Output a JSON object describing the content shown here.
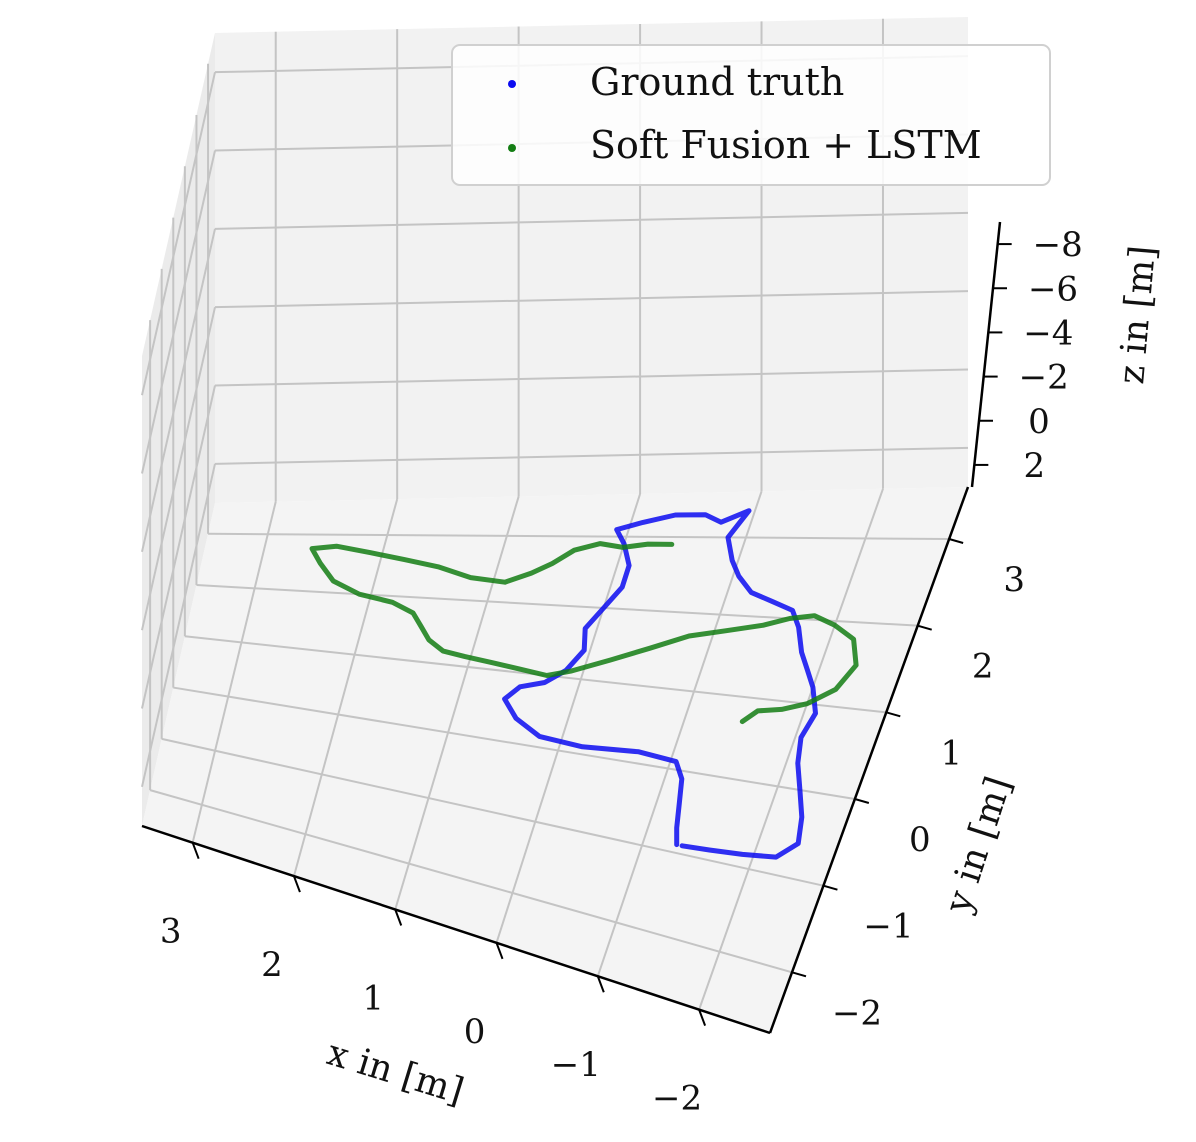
{
  "chart_data": {
    "type": "line3d",
    "title": "",
    "xlabel": "x in [m]",
    "ylabel": "y in [m]",
    "zlabel": "z in [m]",
    "x_ticks": [
      "3",
      "2",
      "1",
      "0",
      "−1",
      "−2"
    ],
    "y_ticks": [
      "−2",
      "−1",
      "0",
      "1",
      "2",
      "3"
    ],
    "z_ticks": [
      "−8",
      "−6",
      "−4",
      "−2",
      "0",
      "2"
    ],
    "xlim": [
      3.5,
      -2.7
    ],
    "ylim": [
      -2.7,
      3.6
    ],
    "zlim": [
      3,
      -9
    ],
    "grid": true,
    "legend_position": "top-right",
    "series": [
      {
        "name": "Ground truth",
        "color": "#0b0bf0",
        "path": [
          [
            -1.3,
            -0.9
          ],
          [
            -1.25,
            -0.7
          ],
          [
            -1.2,
            -0.4
          ],
          [
            -1.15,
            -0.1
          ],
          [
            -1.05,
            0.1
          ],
          [
            -0.7,
            0.15
          ],
          [
            -0.2,
            0.1
          ],
          [
            0.2,
            0.15
          ],
          [
            0.45,
            0.35
          ],
          [
            0.6,
            0.6
          ],
          [
            0.5,
            0.8
          ],
          [
            0.3,
            0.9
          ],
          [
            0.15,
            1.1
          ],
          [
            0.05,
            1.4
          ],
          [
            0.1,
            1.7
          ],
          [
            0.0,
            2.0
          ],
          [
            -0.1,
            2.3
          ],
          [
            -0.1,
            2.6
          ],
          [
            0.0,
            2.9
          ],
          [
            0.1,
            3.1
          ],
          [
            -0.1,
            3.2
          ],
          [
            -0.35,
            3.3
          ],
          [
            -0.6,
            3.3
          ],
          [
            -0.75,
            3.2
          ],
          [
            -0.95,
            3.35
          ],
          [
            -0.85,
            3.0
          ],
          [
            -0.95,
            2.7
          ],
          [
            -1.05,
            2.5
          ],
          [
            -1.2,
            2.3
          ],
          [
            -1.4,
            2.2
          ],
          [
            -1.6,
            2.1
          ],
          [
            -1.7,
            1.9
          ],
          [
            -1.8,
            1.6
          ],
          [
            -1.9,
            1.4
          ],
          [
            -2.0,
            1.2
          ],
          [
            -2.1,
            0.9
          ],
          [
            -2.05,
            0.6
          ],
          [
            -2.1,
            0.3
          ],
          [
            -2.2,
            0.0
          ],
          [
            -2.3,
            -0.3
          ],
          [
            -2.35,
            -0.6
          ],
          [
            -2.2,
            -0.8
          ],
          [
            -1.9,
            -0.85
          ],
          [
            -1.6,
            -0.88
          ],
          [
            -1.35,
            -0.9
          ]
        ]
      },
      {
        "name": "Soft Fusion + LSTM",
        "color": "#137d13",
        "path": [
          [
            -0.4,
            2.9
          ],
          [
            -0.2,
            2.9
          ],
          [
            0.0,
            2.85
          ],
          [
            0.2,
            2.9
          ],
          [
            0.4,
            2.8
          ],
          [
            0.55,
            2.6
          ],
          [
            0.7,
            2.45
          ],
          [
            0.9,
            2.3
          ],
          [
            1.2,
            2.35
          ],
          [
            1.5,
            2.5
          ],
          [
            1.8,
            2.6
          ],
          [
            2.1,
            2.7
          ],
          [
            2.4,
            2.8
          ],
          [
            2.6,
            2.75
          ],
          [
            2.5,
            2.5
          ],
          [
            2.35,
            2.2
          ],
          [
            2.1,
            2.0
          ],
          [
            1.8,
            1.9
          ],
          [
            1.6,
            1.75
          ],
          [
            1.5,
            1.55
          ],
          [
            1.4,
            1.35
          ],
          [
            1.25,
            1.2
          ],
          [
            1.05,
            1.15
          ],
          [
            0.8,
            1.1
          ],
          [
            0.55,
            1.05
          ],
          [
            0.3,
            1.0
          ],
          [
            0.1,
            1.1
          ],
          [
            -0.2,
            1.3
          ],
          [
            -0.5,
            1.5
          ],
          [
            -0.8,
            1.7
          ],
          [
            -1.1,
            1.8
          ],
          [
            -1.4,
            1.9
          ],
          [
            -1.6,
            2.0
          ],
          [
            -1.8,
            2.05
          ],
          [
            -2.0,
            1.95
          ],
          [
            -2.2,
            1.8
          ],
          [
            -2.3,
            1.5
          ],
          [
            -2.2,
            1.2
          ],
          [
            -2.0,
            1.0
          ],
          [
            -1.8,
            0.9
          ],
          [
            -1.6,
            0.85
          ],
          [
            -1.5,
            0.7
          ]
        ]
      }
    ]
  },
  "legend": {
    "items": [
      {
        "label": "Ground truth",
        "color": "#0b0bf0"
      },
      {
        "label": "Soft Fusion + LSTM",
        "color": "#137d13"
      }
    ]
  }
}
